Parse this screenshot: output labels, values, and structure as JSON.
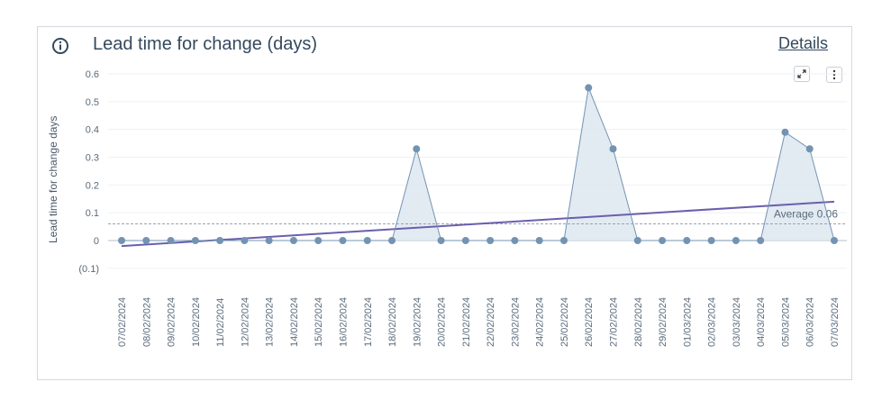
{
  "header": {
    "title": "Lead time for change (days)",
    "details_label": "Details",
    "info_icon": "info-icon",
    "expand_icon": "expand-icon",
    "menu_icon": "kebab-menu-icon"
  },
  "chart_data": {
    "type": "area",
    "ylabel": "Lead time for change days",
    "ylim": [
      -0.14,
      0.63
    ],
    "yticks": [
      {
        "value": 0.6,
        "label": "0.6"
      },
      {
        "value": 0.5,
        "label": "0.5"
      },
      {
        "value": 0.4,
        "label": "0.4"
      },
      {
        "value": 0.3,
        "label": "0.3"
      },
      {
        "value": 0.2,
        "label": "0.2"
      },
      {
        "value": 0.1,
        "label": "0.1"
      },
      {
        "value": 0,
        "label": "0"
      },
      {
        "value": -0.1,
        "label": "(0.1)"
      }
    ],
    "categories": [
      "07/02/2024",
      "08/02/2024",
      "09/02/2024",
      "10/02/2024",
      "11/02/2024",
      "12/02/2024",
      "13/02/2024",
      "14/02/2024",
      "15/02/2024",
      "16/02/2024",
      "17/02/2024",
      "18/02/2024",
      "19/02/2024",
      "20/02/2024",
      "21/02/2024",
      "22/02/2024",
      "23/02/2024",
      "24/02/2024",
      "25/02/2024",
      "26/02/2024",
      "27/02/2024",
      "28/02/2024",
      "29/02/2024",
      "01/03/2024",
      "02/03/2024",
      "03/03/2024",
      "04/03/2024",
      "05/03/2024",
      "06/03/2024",
      "07/03/2024"
    ],
    "values": [
      0,
      0,
      0,
      0,
      0,
      0,
      0,
      0,
      0,
      0,
      0,
      0,
      0.33,
      0,
      0,
      0,
      0,
      0,
      0,
      0.55,
      0.33,
      0,
      0,
      0,
      0,
      0,
      0,
      0.39,
      0.33,
      0
    ],
    "trend": {
      "start": -0.02,
      "end": 0.14
    },
    "average": {
      "value": 0.06,
      "label": "Average 0.06"
    },
    "grid": true,
    "colors": {
      "series": "#7393b3",
      "area": "#dde6f0",
      "trend": "#6a5fae",
      "average": "#9aa3ad"
    }
  }
}
